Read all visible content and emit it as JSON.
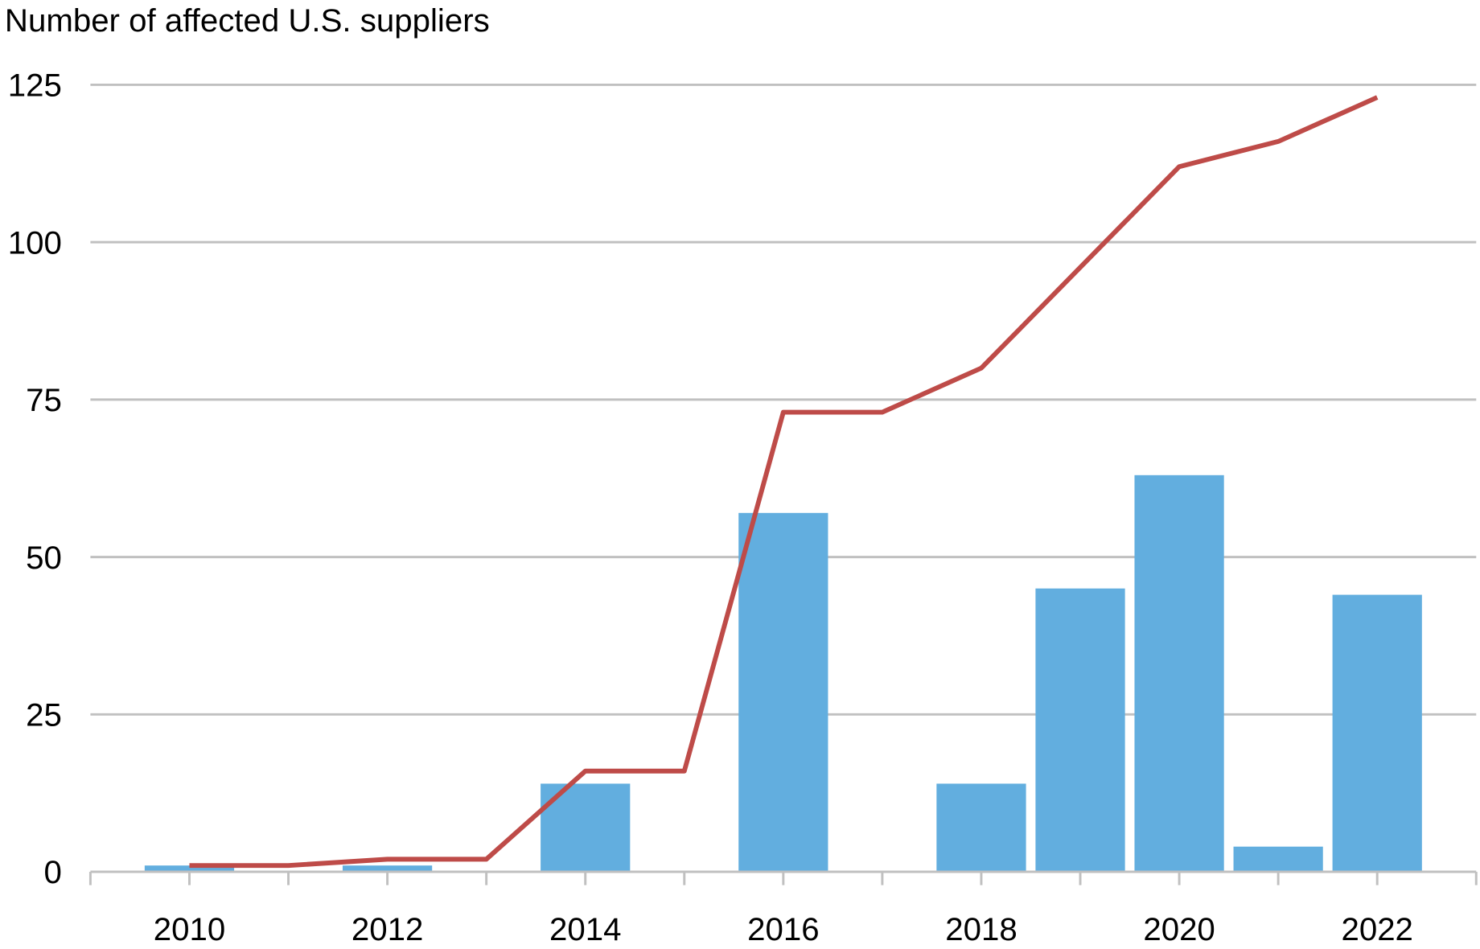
{
  "chart_data": {
    "type": "bar+line",
    "title": "",
    "ylabel": "Number of affected U.S. suppliers",
    "xlabel": "",
    "ylim": [
      0,
      125
    ],
    "yticks": [
      0,
      25,
      50,
      75,
      100,
      125
    ],
    "xlim": [
      2009,
      2023
    ],
    "xtick_labels": [
      "2010",
      "2012",
      "2014",
      "2016",
      "2018",
      "2020",
      "2022"
    ],
    "grid": true,
    "legend": "none",
    "categories": [
      2010,
      2011,
      2012,
      2013,
      2014,
      2015,
      2016,
      2017,
      2018,
      2019,
      2020,
      2021,
      2022
    ],
    "series": [
      {
        "type": "bar",
        "color": "#62AEDF",
        "values": [
          1,
          0,
          1,
          0,
          14,
          0,
          57,
          0,
          14,
          45,
          63,
          4,
          44
        ]
      },
      {
        "type": "line",
        "color": "#BE4B48",
        "values": [
          1,
          1,
          2,
          2,
          16,
          16,
          73,
          73,
          80,
          96,
          112,
          116,
          123
        ]
      }
    ]
  }
}
